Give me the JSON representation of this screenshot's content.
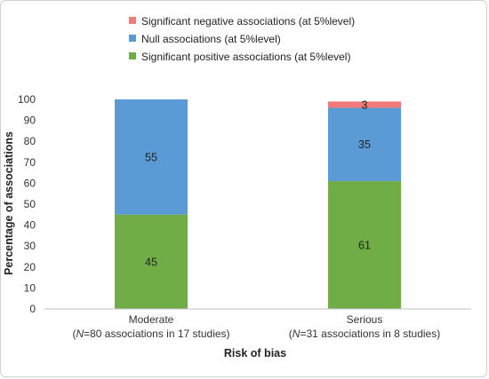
{
  "chart_data": {
    "type": "bar",
    "stacked": true,
    "title": "",
    "xlabel": "Risk of bias",
    "ylabel": "Percentage of associations",
    "ylim": [
      0,
      100
    ],
    "ytick_step": 10,
    "categories": [
      {
        "name": "Moderate",
        "note_prefix": "(",
        "note_n": "N",
        "note_rest": "=80 associations in 17 studies)"
      },
      {
        "name": "Serious",
        "note_prefix": "(",
        "note_n": "N",
        "note_rest": "=31 associations in 8 studies)"
      }
    ],
    "series": [
      {
        "name": "Significant positive associations (at 5%level)",
        "color": "#70ad47",
        "values": [
          45,
          61
        ]
      },
      {
        "name": "Null associations (at 5%level)",
        "color": "#5b9bd5",
        "values": [
          55,
          35
        ]
      },
      {
        "name": "Significant negative associations (at 5%level)",
        "color": "#f07a7a",
        "values": [
          0,
          3
        ]
      }
    ],
    "legend_order": [
      2,
      1,
      0
    ],
    "legend_position": "top",
    "grid": false
  }
}
